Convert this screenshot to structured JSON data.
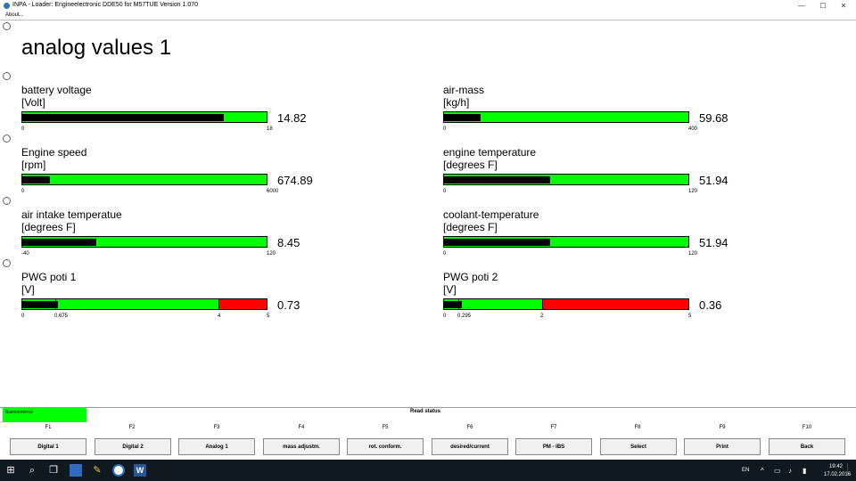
{
  "window": {
    "title": "INPA - Loader:  Engineelectronic DDE50 for M57TUE Version 1.070",
    "menu_about": "About...",
    "minimize": "—",
    "maximize": "☐",
    "close": "✕"
  },
  "screen": {
    "heading": "analog values 1"
  },
  "gauges_left": [
    {
      "name": "battery voltage",
      "unit": "[Volt]",
      "min": "0",
      "max": "18",
      "value": "14.82",
      "fill": 0.823
    },
    {
      "name": "Engine speed",
      "unit": "[rpm]",
      "min": "0",
      "max": "6000",
      "value": "674.89",
      "fill": 0.112
    },
    {
      "name": "air intake temperatue",
      "unit": "[degrees F]",
      "min": "-40",
      "max": "120",
      "value": "8.45",
      "fill": 0.303
    }
  ],
  "gauges_right": [
    {
      "name": "air-mass",
      "unit": "[kg/h]",
      "min": "0",
      "max": "400",
      "value": "59.68",
      "fill": 0.149
    },
    {
      "name": "engine temperature",
      "unit": "[degrees F]",
      "min": "0",
      "max": "120",
      "value": "51.94",
      "fill": 0.433
    },
    {
      "name": "coolant-temperature",
      "unit": "[degrees F]",
      "min": "0",
      "max": "120",
      "value": "51.94",
      "fill": 0.433
    }
  ],
  "pwg1": {
    "name": "PWG poti 1",
    "unit": "[V]",
    "min": "0",
    "low": "0.675",
    "high": "4",
    "max": "5",
    "value": "0.73",
    "fill": 0.146
  },
  "pwg2": {
    "name": "PWG poti 2",
    "unit": "[V]",
    "min": "0",
    "low": "0.295",
    "high": "2",
    "max": "5",
    "value": "0.36",
    "fill": 0.072
  },
  "status": {
    "running": "Выполняется",
    "read_status": "Read status"
  },
  "fkeys": [
    "F1",
    "F2",
    "F3",
    "F4",
    "F5",
    "F6",
    "F7",
    "F8",
    "F9",
    "F10"
  ],
  "fbuttons": [
    "Digital 1",
    "Digital 2",
    "Analog 1",
    "mass adjustm.",
    "rot. conform.",
    "desired/current",
    "PM - IBS",
    "Select",
    "Print",
    "Back"
  ],
  "taskbar": {
    "lang": "EN",
    "time": "19:42",
    "date": "17.02.2016"
  },
  "colors": {
    "bar_ok": "#00ff00",
    "bar_alarm": "#ff0000",
    "bar_fill": "#000000",
    "taskbar": "#101820"
  }
}
